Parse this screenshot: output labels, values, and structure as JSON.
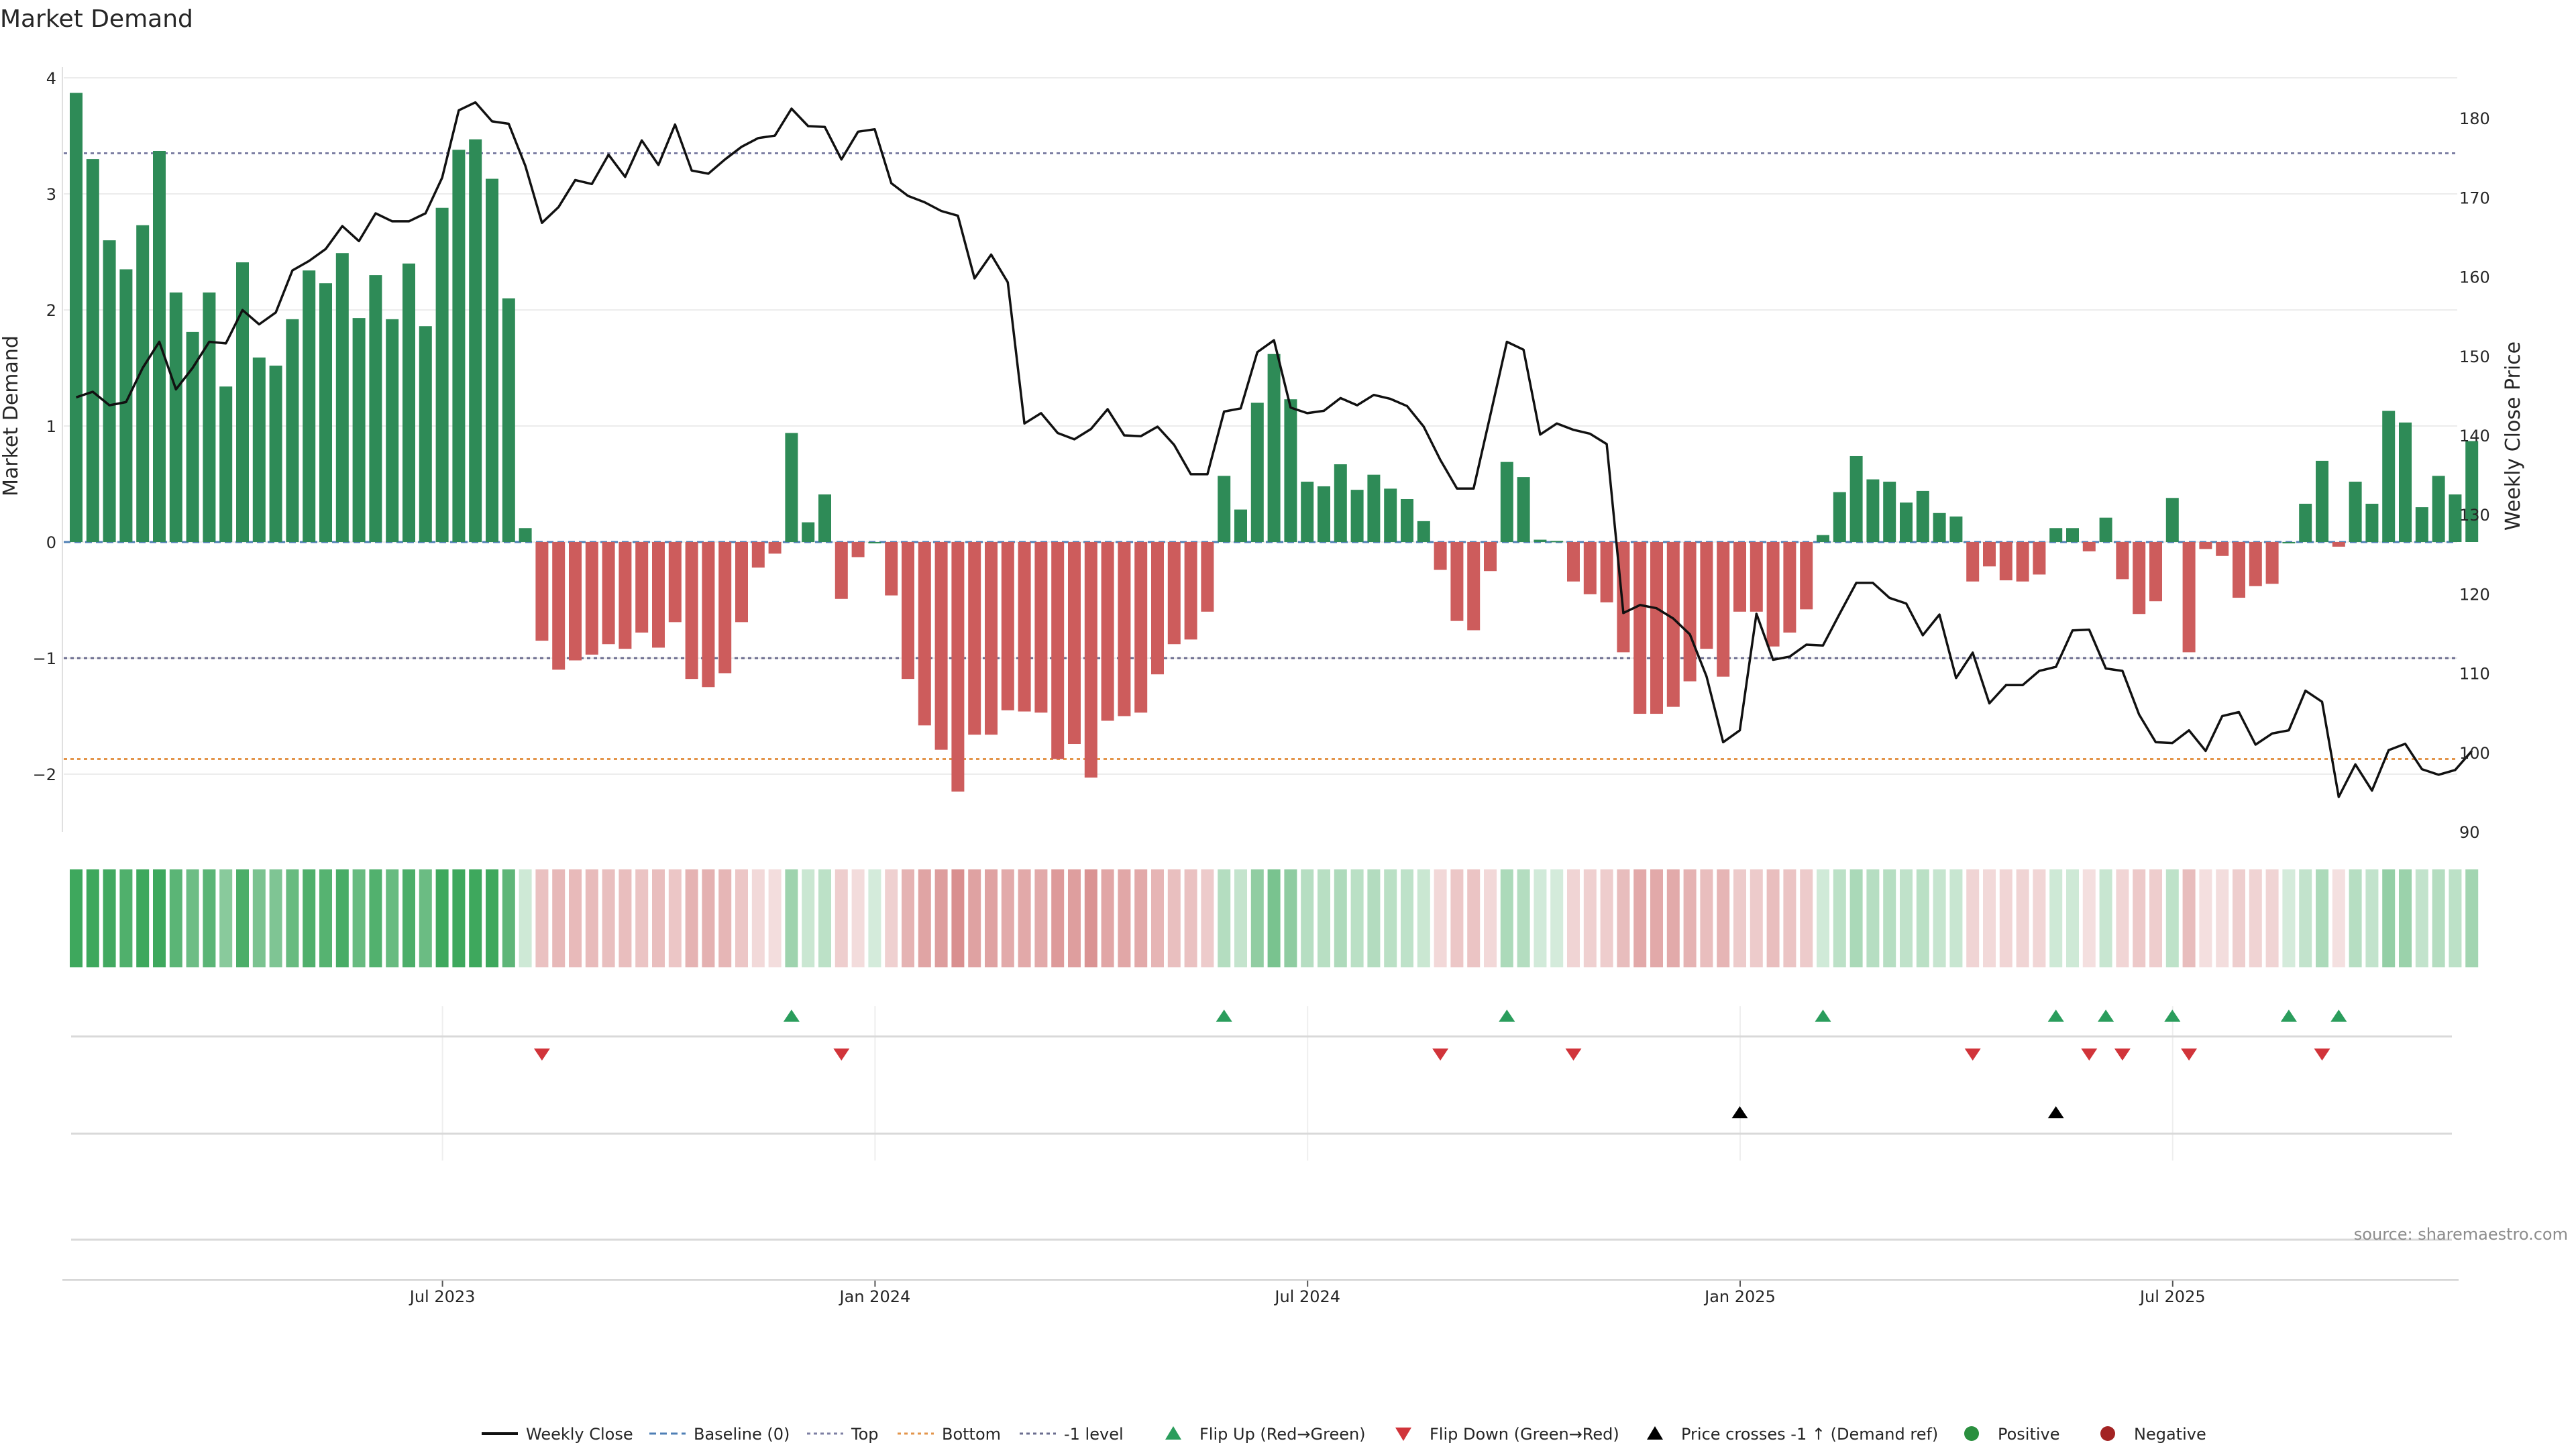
{
  "chart_data": {
    "type": "bar+line",
    "title": "Market Demand",
    "ylabel_left": "Market Demand",
    "ylabel_right": "Weekly Close Price",
    "source": "source: sharemaestro.com",
    "ylim_left": [
      -2.5,
      4.0
    ],
    "ylim_right": [
      90,
      185
    ],
    "yticks_left": [
      {
        "v": 4,
        "label": "4"
      },
      {
        "v": 3,
        "label": "3"
      },
      {
        "v": 2,
        "label": "2"
      },
      {
        "v": 1,
        "label": "1"
      },
      {
        "v": 0,
        "label": "0"
      },
      {
        "v": -1,
        "label": "−1"
      },
      {
        "v": -2,
        "label": "−2"
      }
    ],
    "yticks_right": [
      {
        "v": 180,
        "label": "180"
      },
      {
        "v": 170,
        "label": "170"
      },
      {
        "v": 160,
        "label": "160"
      },
      {
        "v": 150,
        "label": "150"
      },
      {
        "v": 140,
        "label": "140"
      },
      {
        "v": 130,
        "label": "130"
      },
      {
        "v": 120,
        "label": "120"
      },
      {
        "v": 110,
        "label": "110"
      },
      {
        "v": 100,
        "label": "100"
      },
      {
        "v": 90,
        "label": "90"
      }
    ],
    "xticks": [
      {
        "i": 22,
        "label": "Jul 2023"
      },
      {
        "i": 48,
        "label": "Jan 2024"
      },
      {
        "i": 74,
        "label": "Jul 2024"
      },
      {
        "i": 100,
        "label": "Jan 2025"
      },
      {
        "i": 126,
        "label": "Jul 2025"
      }
    ],
    "reference_lines": {
      "top": 3.35,
      "bottom": -1.87,
      "minus_one": -1.0,
      "baseline": 0
    },
    "demand": [
      3.87,
      3.3,
      2.6,
      2.35,
      2.73,
      3.37,
      2.15,
      1.81,
      2.15,
      1.34,
      2.41,
      1.59,
      1.52,
      1.92,
      2.34,
      2.23,
      2.49,
      1.93,
      2.3,
      1.92,
      2.4,
      1.86,
      2.88,
      3.38,
      3.47,
      3.13,
      2.1,
      0.12,
      -0.85,
      -1.1,
      -1.02,
      -0.97,
      -0.88,
      -0.92,
      -0.78,
      -0.91,
      -0.69,
      -1.18,
      -1.25,
      -1.13,
      -0.69,
      -0.22,
      -0.1,
      0.94,
      0.17,
      0.41,
      -0.49,
      -0.13,
      0.0,
      -0.46,
      -1.18,
      -1.58,
      -1.79,
      -2.15,
      -1.66,
      -1.66,
      -1.45,
      -1.46,
      -1.47,
      -1.87,
      -1.74,
      -2.03,
      -1.54,
      -1.5,
      -1.47,
      -1.14,
      -0.88,
      -0.84,
      -0.6,
      0.57,
      0.28,
      1.2,
      1.62,
      1.23,
      0.52,
      0.48,
      0.67,
      0.45,
      0.58,
      0.46,
      0.37,
      0.18,
      -0.24,
      -0.68,
      -0.76,
      -0.25,
      0.69,
      0.56,
      0.02,
      0.01,
      -0.34,
      -0.45,
      -0.52,
      -0.95,
      -1.48,
      -1.48,
      -1.42,
      -1.2,
      -0.92,
      -1.16,
      -0.6,
      -0.6,
      -0.9,
      -0.78,
      -0.58,
      0.06,
      0.43,
      0.74,
      0.54,
      0.52,
      0.34,
      0.44,
      0.25,
      0.22,
      -0.34,
      -0.21,
      -0.33,
      -0.34,
      -0.28,
      0.12,
      0.12,
      -0.08,
      0.21,
      -0.32,
      -0.62,
      -0.51,
      0.38,
      -0.95,
      -0.06,
      -0.12,
      -0.48,
      -0.38,
      -0.36,
      0.0,
      0.33,
      0.7,
      -0.04,
      0.52,
      0.33,
      1.13,
      1.03,
      0.3,
      0.57,
      0.41,
      0.87
    ],
    "close": [
      144.8,
      145.5,
      143.8,
      144.2,
      148.5,
      151.8,
      145.8,
      148.5,
      151.8,
      151.6,
      155.8,
      154.0,
      155.5,
      160.8,
      162.0,
      163.5,
      166.4,
      164.5,
      168.0,
      167.0,
      167.0,
      168.0,
      172.5,
      181.0,
      182.0,
      179.6,
      179.3,
      174.0,
      166.8,
      168.8,
      172.2,
      171.7,
      175.4,
      172.6,
      177.2,
      174.1,
      179.2,
      173.4,
      173.0,
      174.8,
      176.4,
      177.5,
      177.8,
      181.2,
      179.0,
      178.9,
      174.8,
      178.3,
      178.6,
      171.8,
      170.2,
      169.4,
      168.3,
      167.7,
      159.8,
      162.8,
      159.3,
      141.5,
      142.8,
      140.3,
      139.5,
      140.8,
      143.3,
      140.0,
      139.9,
      141.1,
      138.8,
      135.1,
      135.1,
      143.0,
      143.4,
      150.5,
      152.0,
      143.5,
      142.8,
      143.1,
      144.7,
      143.8,
      145.1,
      144.6,
      143.7,
      141.1,
      136.9,
      133.3,
      133.3,
      142.5,
      151.8,
      150.8,
      140.1,
      141.5,
      140.7,
      140.2,
      138.9,
      117.6,
      118.6,
      118.2,
      116.9,
      114.9,
      109.6,
      101.3,
      102.8,
      117.5,
      111.7,
      112.1,
      113.6,
      113.5,
      117.5,
      121.4,
      121.4,
      119.5,
      118.8,
      114.8,
      117.4,
      109.4,
      112.6,
      106.2,
      108.5,
      108.5,
      110.3,
      110.8,
      115.4,
      115.5,
      110.6,
      110.3,
      104.8,
      101.3,
      101.2,
      102.8,
      100.2,
      104.6,
      105.1,
      101.0,
      102.4,
      102.8,
      107.8,
      106.4,
      94.4,
      98.5,
      95.2,
      100.3,
      101.1,
      97.9,
      97.2,
      97.8,
      100.2
    ],
    "flip_up": [
      43,
      69,
      86,
      105,
      119,
      122,
      126,
      133,
      136
    ],
    "flip_down": [
      28,
      46,
      82,
      90,
      114,
      121,
      123,
      127,
      135
    ],
    "price_cross": [
      100,
      119
    ],
    "legend": [
      {
        "key": "line",
        "label": "Weekly Close",
        "color": "#111111"
      },
      {
        "key": "dash",
        "label": "Baseline (0)",
        "color": "#4f7fb5"
      },
      {
        "key": "dot",
        "label": "Top",
        "color": "#7d7fa3"
      },
      {
        "key": "dot",
        "label": "Bottom",
        "color": "#e3954b"
      },
      {
        "key": "dot",
        "label": "-1 level",
        "color": "#6b6d8f"
      },
      {
        "key": "tri-up",
        "label": "Flip Up (Red→Green)",
        "color": "#2a9d5c"
      },
      {
        "key": "tri-down",
        "label": "Flip Down (Green→Red)",
        "color": "#d1343a"
      },
      {
        "key": "tri-up",
        "label": "Price crosses -1 ↑ (Demand ref)",
        "color": "#000000"
      },
      {
        "key": "circle",
        "label": "Positive",
        "color": "#2a8f3f"
      },
      {
        "key": "circle",
        "label": "Negative",
        "color": "#a32323"
      }
    ],
    "colors": {
      "positive": "#2e8b57",
      "negative": "#cd5c5c",
      "line": "#111111",
      "grid": "#ececec"
    }
  }
}
